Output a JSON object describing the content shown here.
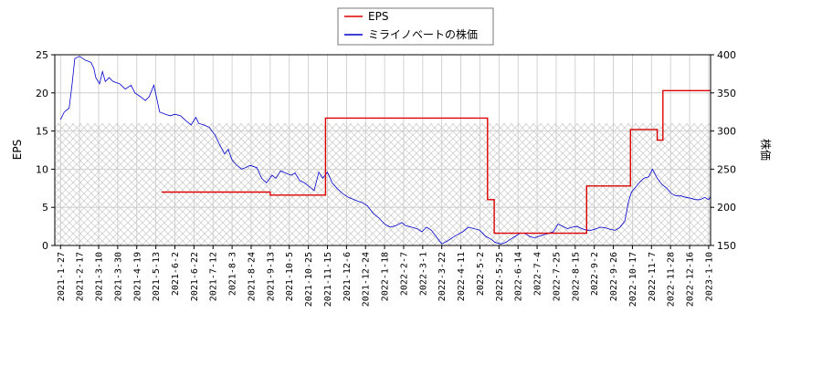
{
  "chart_data": {
    "type": "line",
    "legend": {
      "placement": "top-center",
      "entries": [
        {
          "label": "EPS",
          "color": "#dd0000"
        },
        {
          "label": "ミライノベートの株価",
          "color": "#0000cc"
        }
      ]
    },
    "y_left": {
      "label": "EPS",
      "ylim": [
        0,
        25
      ],
      "ticks": [
        0,
        5,
        10,
        15,
        20,
        25
      ]
    },
    "y_right": {
      "label": "株価",
      "ylim": [
        150,
        400
      ],
      "ticks": [
        150,
        200,
        250,
        300,
        350,
        400
      ]
    },
    "x_ticks": [
      "2021-1-27",
      "2021-2-17",
      "2021-3-10",
      "2021-3-30",
      "2021-4-19",
      "2021-5-13",
      "2021-6-2",
      "2021-6-22",
      "2021-7-12",
      "2021-8-3",
      "2021-8-24",
      "2021-9-13",
      "2021-10-5",
      "2021-10-25",
      "2021-11-15",
      "2021-12-6",
      "2021-12-24",
      "2022-1-18",
      "2022-2-7",
      "2022-3-1",
      "2022-3-22",
      "2022-4-11",
      "2022-5-2",
      "2022-5-25",
      "2022-6-14",
      "2022-7-4",
      "2022-7-25",
      "2022-8-15",
      "2022-9-2",
      "2022-9-26",
      "2022-10-17",
      "2022-11-7",
      "2022-11-28",
      "2022-12-16",
      "2023-1-10"
    ],
    "grid": true,
    "hatched_band": {
      "from": 0,
      "to": 16
    },
    "series": [
      {
        "name": "EPS",
        "axis": "left",
        "color": "#dd0000",
        "points": [
          [
            5.3,
            7.0
          ],
          [
            11.0,
            7.0
          ],
          [
            11.0,
            6.6
          ],
          [
            13.9,
            6.6
          ],
          [
            13.9,
            16.7
          ],
          [
            22.4,
            16.7
          ],
          [
            22.4,
            6.0
          ],
          [
            22.75,
            6.0
          ],
          [
            22.75,
            1.6
          ],
          [
            27.6,
            1.6
          ],
          [
            27.6,
            7.8
          ],
          [
            29.9,
            7.8
          ],
          [
            29.9,
            15.2
          ],
          [
            31.3,
            15.2
          ],
          [
            31.3,
            13.8
          ],
          [
            31.6,
            13.8
          ],
          [
            31.6,
            20.3
          ],
          [
            34.3,
            20.3
          ],
          [
            34.3,
            16.0
          ],
          [
            34.4,
            15.2
          ]
        ]
      },
      {
        "name": "ミライノベートの株価",
        "axis": "right",
        "color": "#0000cc",
        "points": [
          [
            0.0,
            315
          ],
          [
            0.2,
            325
          ],
          [
            0.45,
            330
          ],
          [
            0.6,
            360
          ],
          [
            0.75,
            395
          ],
          [
            1.0,
            398
          ],
          [
            1.3,
            393
          ],
          [
            1.6,
            390
          ],
          [
            1.75,
            382
          ],
          [
            1.85,
            370
          ],
          [
            2.05,
            362
          ],
          [
            2.2,
            378
          ],
          [
            2.35,
            365
          ],
          [
            2.55,
            370
          ],
          [
            2.75,
            365
          ],
          [
            3.1,
            362
          ],
          [
            3.4,
            355
          ],
          [
            3.7,
            360
          ],
          [
            3.9,
            350
          ],
          [
            4.2,
            345
          ],
          [
            4.45,
            340
          ],
          [
            4.65,
            345
          ],
          [
            4.9,
            360
          ],
          [
            5.2,
            325
          ],
          [
            5.5,
            322
          ],
          [
            5.75,
            320
          ],
          [
            6.0,
            322
          ],
          [
            6.3,
            320
          ],
          [
            6.6,
            313
          ],
          [
            6.85,
            308
          ],
          [
            7.1,
            318
          ],
          [
            7.25,
            310
          ],
          [
            7.5,
            308
          ],
          [
            7.8,
            305
          ],
          [
            8.1,
            295
          ],
          [
            8.35,
            282
          ],
          [
            8.6,
            270
          ],
          [
            8.8,
            276
          ],
          [
            9.0,
            262
          ],
          [
            9.2,
            256
          ],
          [
            9.5,
            250
          ],
          [
            9.7,
            252
          ],
          [
            9.95,
            255
          ],
          [
            10.3,
            252
          ],
          [
            10.55,
            238
          ],
          [
            10.8,
            232
          ],
          [
            11.1,
            242
          ],
          [
            11.3,
            238
          ],
          [
            11.55,
            248
          ],
          [
            11.8,
            245
          ],
          [
            12.1,
            242
          ],
          [
            12.3,
            245
          ],
          [
            12.55,
            235
          ],
          [
            12.8,
            232
          ],
          [
            13.1,
            226
          ],
          [
            13.3,
            222
          ],
          [
            13.55,
            246
          ],
          [
            13.75,
            238
          ],
          [
            14.0,
            246
          ],
          [
            14.25,
            232
          ],
          [
            14.5,
            225
          ],
          [
            14.8,
            218
          ],
          [
            15.1,
            213
          ],
          [
            15.4,
            210
          ],
          [
            15.6,
            208
          ],
          [
            15.85,
            206
          ],
          [
            16.1,
            202
          ],
          [
            16.4,
            192
          ],
          [
            16.7,
            186
          ],
          [
            17.0,
            178
          ],
          [
            17.3,
            174
          ],
          [
            17.6,
            176
          ],
          [
            17.9,
            180
          ],
          [
            18.1,
            176
          ],
          [
            18.4,
            174
          ],
          [
            18.7,
            172
          ],
          [
            18.95,
            168
          ],
          [
            19.2,
            174
          ],
          [
            19.45,
            170
          ],
          [
            19.7,
            162
          ],
          [
            20.0,
            152
          ],
          [
            20.3,
            156
          ],
          [
            20.55,
            160
          ],
          [
            20.8,
            164
          ],
          [
            21.1,
            168
          ],
          [
            21.4,
            174
          ],
          [
            21.7,
            172
          ],
          [
            22.0,
            170
          ],
          [
            22.3,
            162
          ],
          [
            22.6,
            158
          ],
          [
            22.8,
            154
          ],
          [
            23.1,
            152
          ],
          [
            23.35,
            154
          ],
          [
            23.6,
            158
          ],
          [
            23.85,
            162
          ],
          [
            24.1,
            166
          ],
          [
            24.35,
            166
          ],
          [
            24.6,
            162
          ],
          [
            24.85,
            160
          ],
          [
            25.1,
            162
          ],
          [
            25.35,
            164
          ],
          [
            25.6,
            166
          ],
          [
            25.85,
            168
          ],
          [
            26.1,
            178
          ],
          [
            26.35,
            175
          ],
          [
            26.6,
            172
          ],
          [
            26.85,
            174
          ],
          [
            27.1,
            175
          ],
          [
            27.35,
            172
          ],
          [
            27.6,
            170
          ],
          [
            27.85,
            170
          ],
          [
            28.1,
            172
          ],
          [
            28.35,
            174
          ],
          [
            28.6,
            173
          ],
          [
            28.85,
            171
          ],
          [
            29.1,
            170
          ],
          [
            29.35,
            174
          ],
          [
            29.6,
            182
          ],
          [
            29.8,
            208
          ],
          [
            29.95,
            220
          ],
          [
            30.15,
            226
          ],
          [
            30.35,
            232
          ],
          [
            30.6,
            238
          ],
          [
            30.85,
            240
          ],
          [
            31.05,
            250
          ],
          [
            31.3,
            238
          ],
          [
            31.55,
            230
          ],
          [
            31.8,
            225
          ],
          [
            32.05,
            218
          ],
          [
            32.3,
            215
          ],
          [
            32.55,
            215
          ],
          [
            32.8,
            213
          ],
          [
            33.05,
            212
          ],
          [
            33.3,
            210
          ],
          [
            33.55,
            210
          ],
          [
            33.8,
            213
          ],
          [
            34.0,
            210
          ],
          [
            34.2,
            218
          ],
          [
            34.35,
            223
          ],
          [
            34.45,
            226
          ]
        ]
      }
    ]
  }
}
